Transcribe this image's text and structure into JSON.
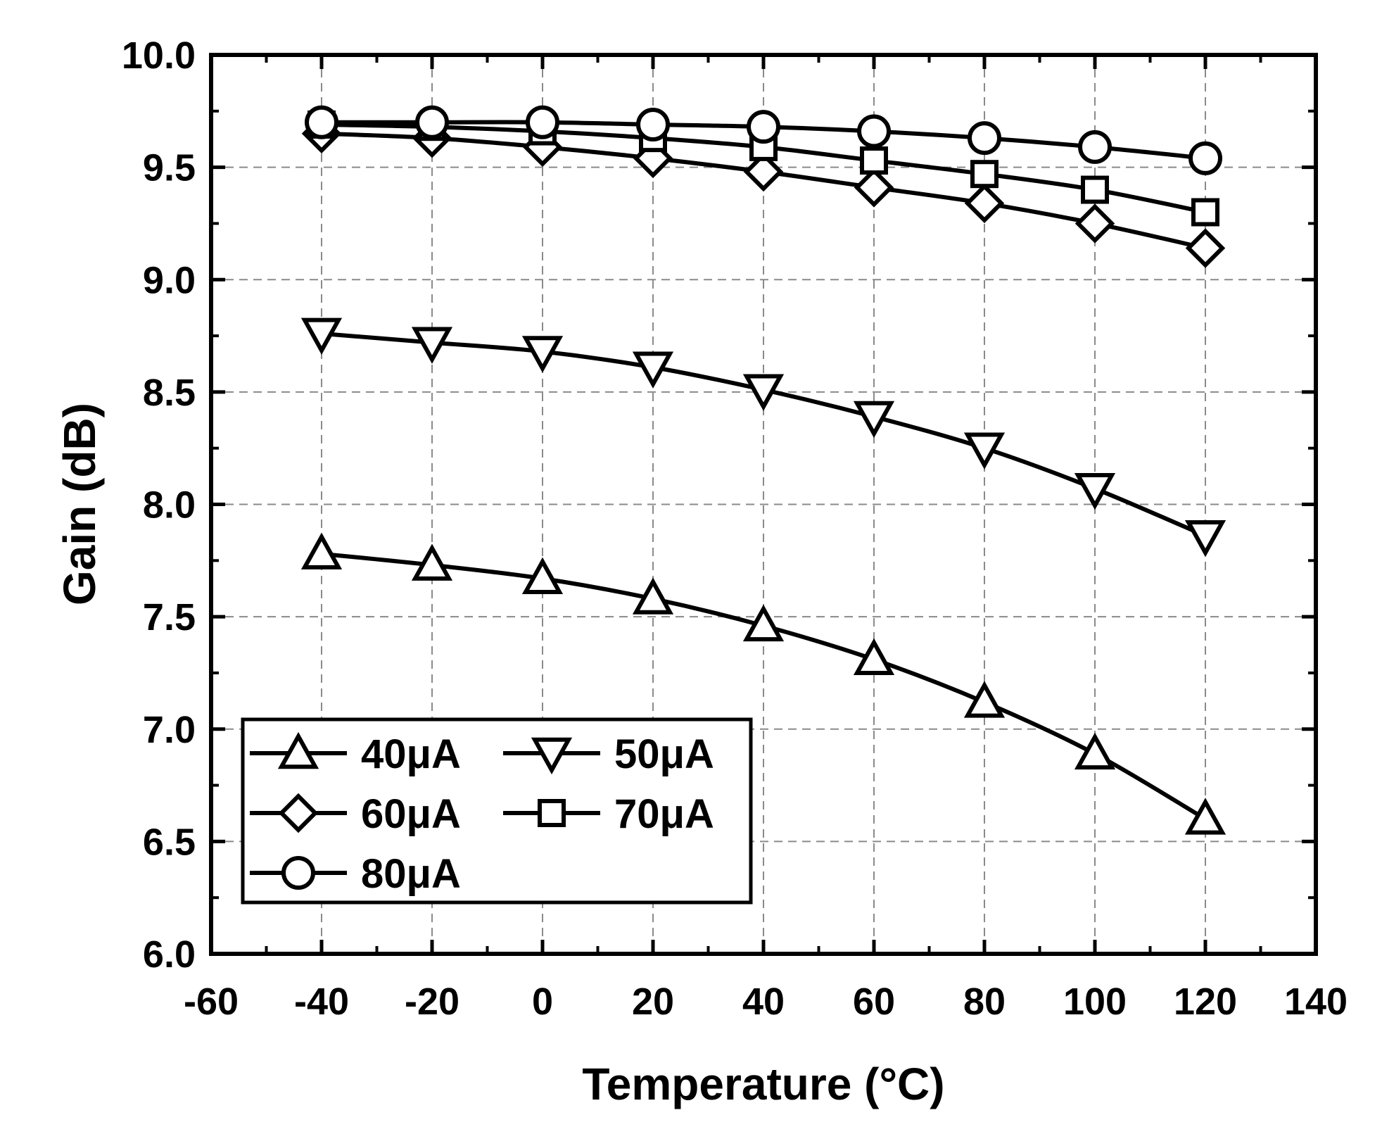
{
  "chart_data": {
    "type": "line",
    "title": "",
    "xlabel": "Temperature (°C)",
    "ylabel": "Gain (dB)",
    "xlim": [
      -60,
      140
    ],
    "ylim": [
      6.0,
      10.0
    ],
    "xticks": [
      -60,
      -40,
      -20,
      0,
      20,
      40,
      60,
      80,
      100,
      120,
      140
    ],
    "xtick_labels": [
      "-60",
      "-40",
      "-20",
      "0",
      "20",
      "40",
      "60",
      "80",
      "100",
      "120",
      "140"
    ],
    "yticks": [
      6.0,
      6.5,
      7.0,
      7.5,
      8.0,
      8.5,
      9.0,
      9.5,
      10.0
    ],
    "ytick_labels": [
      "6.0",
      "6.5",
      "7.0",
      "7.5",
      "8.0",
      "8.5",
      "9.0",
      "9.5",
      "10.0"
    ],
    "grid": true,
    "legend_position": "bottom-left",
    "x": [
      -40,
      -20,
      0,
      20,
      40,
      60,
      80,
      100,
      120
    ],
    "series": [
      {
        "name": "40μA",
        "marker": "triangle-up",
        "values": [
          7.78,
          7.73,
          7.67,
          7.58,
          7.46,
          7.31,
          7.12,
          6.89,
          6.6
        ]
      },
      {
        "name": "50μA",
        "marker": "triangle-down",
        "values": [
          8.76,
          8.72,
          8.68,
          8.61,
          8.51,
          8.39,
          8.25,
          8.07,
          7.86
        ]
      },
      {
        "name": "60μA",
        "marker": "diamond",
        "values": [
          9.65,
          9.63,
          9.59,
          9.54,
          9.48,
          9.41,
          9.34,
          9.25,
          9.14
        ]
      },
      {
        "name": "70μA",
        "marker": "square",
        "values": [
          9.69,
          9.68,
          9.66,
          9.63,
          9.59,
          9.53,
          9.47,
          9.4,
          9.3
        ]
      },
      {
        "name": "80μA",
        "marker": "circle",
        "values": [
          9.7,
          9.7,
          9.7,
          9.69,
          9.68,
          9.66,
          9.63,
          9.59,
          9.54
        ]
      }
    ]
  }
}
